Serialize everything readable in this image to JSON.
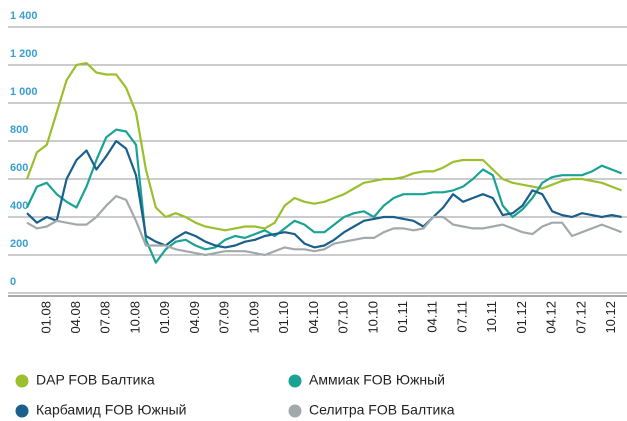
{
  "chart_data": {
    "type": "line",
    "categories": [
      null,
      null,
      "01.08",
      null,
      null,
      "04.08",
      null,
      null,
      "07.08",
      null,
      null,
      "10.08",
      null,
      null,
      "01.09",
      null,
      null,
      "04.09",
      null,
      null,
      "07.09",
      null,
      null,
      "10.09",
      null,
      null,
      "01.10",
      null,
      null,
      "04.10",
      null,
      null,
      "07.10",
      null,
      null,
      "10.10",
      null,
      null,
      "01.11",
      null,
      null,
      "04.11",
      null,
      null,
      "07.11",
      null,
      null,
      "10.11",
      null,
      null,
      "01.12",
      null,
      null,
      "04.12",
      null,
      null,
      "07.12",
      null,
      null,
      "10.12",
      null
    ],
    "series": [
      {
        "name": "DAP FOB Балтика",
        "color": "#9bbf2e",
        "values": [
          600,
          740,
          780,
          950,
          1120,
          1200,
          1210,
          1160,
          1150,
          1150,
          1080,
          950,
          650,
          450,
          400,
          420,
          400,
          370,
          350,
          340,
          330,
          340,
          350,
          350,
          340,
          370,
          460,
          500,
          480,
          470,
          480,
          500,
          520,
          550,
          580,
          590,
          600,
          600,
          610,
          630,
          640,
          640,
          660,
          690,
          700,
          700,
          700,
          650,
          600,
          580,
          570,
          560,
          550,
          570,
          590,
          600,
          600,
          590,
          580,
          560,
          540
        ]
      },
      {
        "name": "Аммиак FOB Южный",
        "color": "#1aa394",
        "values": [
          450,
          560,
          580,
          520,
          480,
          450,
          560,
          700,
          820,
          860,
          850,
          780,
          280,
          160,
          230,
          270,
          280,
          250,
          230,
          240,
          280,
          300,
          290,
          310,
          330,
          300,
          340,
          380,
          360,
          320,
          320,
          360,
          400,
          420,
          430,
          400,
          460,
          500,
          520,
          520,
          520,
          530,
          530,
          540,
          560,
          600,
          650,
          620,
          460,
          400,
          440,
          500,
          580,
          610,
          620,
          620,
          620,
          640,
          670,
          650,
          630
        ]
      },
      {
        "name": "Карбамид FOB Южный",
        "color": "#1b5f8c",
        "values": [
          420,
          370,
          400,
          380,
          600,
          700,
          750,
          650,
          720,
          800,
          760,
          620,
          300,
          270,
          250,
          290,
          320,
          300,
          270,
          250,
          240,
          250,
          270,
          280,
          300,
          310,
          320,
          310,
          260,
          240,
          250,
          280,
          320,
          350,
          380,
          390,
          400,
          400,
          390,
          380,
          350,
          400,
          450,
          520,
          480,
          500,
          520,
          500,
          410,
          420,
          460,
          540,
          520,
          430,
          410,
          400,
          420,
          410,
          400,
          410,
          400
        ]
      },
      {
        "name": "Селитра FOB Балтика",
        "color": "#a3a9ab",
        "values": [
          370,
          340,
          350,
          380,
          370,
          360,
          360,
          400,
          460,
          510,
          490,
          380,
          250,
          250,
          250,
          230,
          220,
          210,
          200,
          210,
          220,
          220,
          220,
          210,
          200,
          220,
          240,
          230,
          230,
          220,
          230,
          260,
          270,
          280,
          290,
          290,
          320,
          340,
          340,
          330,
          340,
          400,
          400,
          360,
          350,
          340,
          340,
          350,
          360,
          340,
          320,
          310,
          350,
          370,
          370,
          300,
          320,
          340,
          360,
          340,
          320
        ]
      }
    ],
    "ylim": [
      0,
      1400
    ],
    "yticks": [
      0,
      200,
      400,
      600,
      800,
      {
        "value": 1000,
        "label": "1 000"
      },
      {
        "value": 1200,
        "label": "1 200"
      },
      {
        "value": 1400,
        "label": "1 400"
      }
    ],
    "grid": true
  }
}
